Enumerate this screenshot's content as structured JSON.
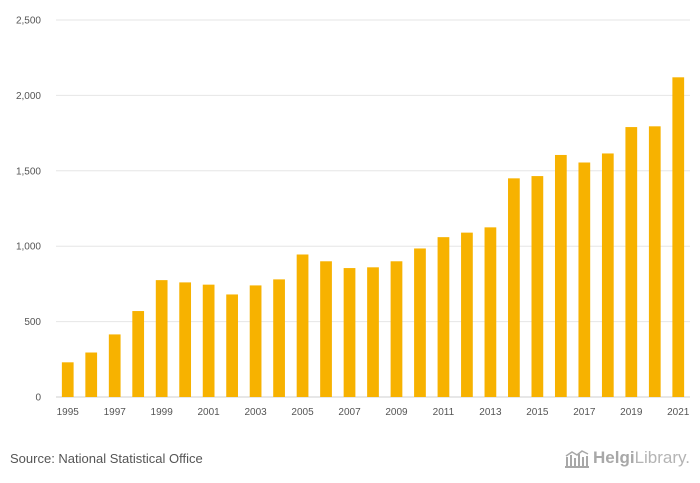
{
  "chart_data": {
    "type": "bar",
    "categories": [
      "1995",
      "1996",
      "1997",
      "1998",
      "1999",
      "2000",
      "2001",
      "2002",
      "2003",
      "2004",
      "2005",
      "2006",
      "2007",
      "2008",
      "2009",
      "2010",
      "2011",
      "2012",
      "2013",
      "2014",
      "2015",
      "2016",
      "2017",
      "2018",
      "2019",
      "2020",
      "2021"
    ],
    "values": [
      230,
      295,
      415,
      570,
      775,
      760,
      745,
      680,
      740,
      780,
      945,
      900,
      855,
      860,
      900,
      985,
      1060,
      1090,
      1125,
      1450,
      1465,
      1605,
      1555,
      1615,
      1790,
      1795,
      2120
    ],
    "x_tick_labels": [
      "1995",
      "1997",
      "1999",
      "2001",
      "2003",
      "2005",
      "2007",
      "2009",
      "2011",
      "2013",
      "2015",
      "2017",
      "2019",
      "2021"
    ],
    "y_ticks": [
      0,
      500,
      1000,
      1500,
      2000,
      2500
    ],
    "y_tick_labels": [
      "0",
      "500",
      "1,000",
      "1,500",
      "2,000",
      "2,500"
    ],
    "ylim": [
      0,
      2500
    ],
    "title": "",
    "xlabel": "",
    "ylabel": "",
    "bar_color": "#f7b200",
    "grid": true
  },
  "footer": {
    "source": "Source: National Statistical Office",
    "logo_bold": "Helgi",
    "logo_light": "Library."
  }
}
